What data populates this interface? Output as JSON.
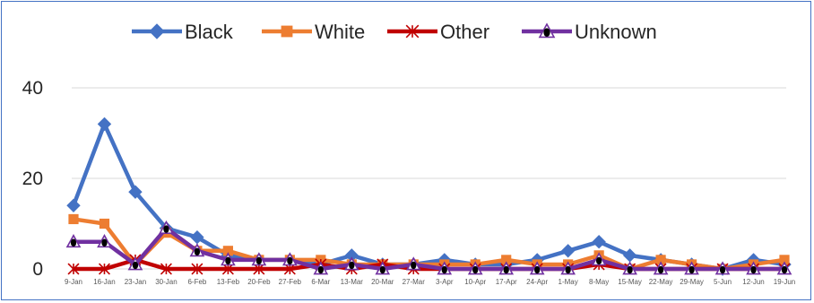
{
  "chart_data": {
    "type": "line",
    "title": "",
    "xlabel": "",
    "ylabel": "",
    "ylim": [
      0,
      40
    ],
    "yticks": [
      "0",
      "20",
      "40"
    ],
    "grid": true,
    "legend_position": "top",
    "categories": [
      "9-Jan",
      "16-Jan",
      "23-Jan",
      "30-Jan",
      "6-Feb",
      "13-Feb",
      "20-Feb",
      "27-Feb",
      "6-Mar",
      "13-Mar",
      "20-Mar",
      "27-Mar",
      "3-Apr",
      "10-Apr",
      "17-Apr",
      "24-Apr",
      "1-May",
      "8-May",
      "15-May",
      "22-May",
      "29-May",
      "5-Jun",
      "12-Jun",
      "19-Jun"
    ],
    "series": [
      {
        "name": "Black",
        "color": "#4472c4",
        "marker": "diamond",
        "values": [
          14,
          32,
          17,
          9,
          7,
          3,
          2,
          2,
          1,
          3,
          1,
          1,
          2,
          1,
          1,
          2,
          4,
          6,
          3,
          2,
          1,
          0,
          2,
          1
        ]
      },
      {
        "name": "White",
        "color": "#ed7d31",
        "marker": "square",
        "values": [
          11,
          10,
          1,
          8,
          4,
          4,
          2,
          2,
          2,
          1,
          1,
          1,
          1,
          1,
          2,
          1,
          1,
          3,
          0,
          2,
          1,
          0,
          1,
          2
        ]
      },
      {
        "name": "Other",
        "color": "#c00000",
        "marker": "asterisk",
        "values": [
          0,
          0,
          2,
          0,
          0,
          0,
          0,
          0,
          1,
          0,
          1,
          0,
          0,
          0,
          0,
          0,
          0,
          1,
          0,
          0,
          0,
          0,
          0,
          0
        ]
      },
      {
        "name": "Unknown",
        "color": "#7030a0",
        "marker": "triangle",
        "values": [
          6,
          6,
          1,
          9,
          4,
          2,
          2,
          2,
          0,
          1,
          0,
          1,
          0,
          0,
          0,
          0,
          0,
          2,
          0,
          0,
          0,
          0,
          0,
          0
        ]
      }
    ]
  }
}
